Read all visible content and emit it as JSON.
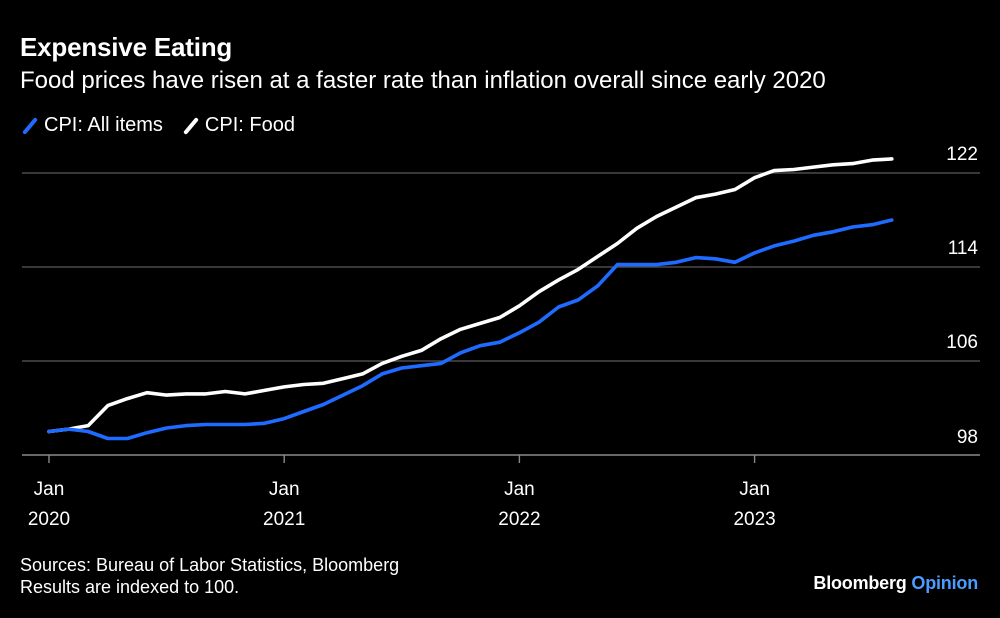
{
  "header": {
    "title": "Expensive Eating",
    "subtitle": "Food prices have risen at a faster rate than inflation overall since early 2020"
  },
  "legend": {
    "items": [
      {
        "label": "CPI: All items",
        "color": "#1f6bff"
      },
      {
        "label": "CPI: Food",
        "color": "#ffffff"
      }
    ]
  },
  "footer": {
    "sources": "Sources: Bureau of Labor Statistics, Bloomberg",
    "note": "Results are indexed to 100."
  },
  "brand": {
    "name": "Bloomberg",
    "section": "Opinion"
  },
  "chart_data": {
    "type": "line",
    "title": "Expensive Eating",
    "subtitle": "Food prices have risen at a faster rate than inflation overall since early 2020",
    "xlabel": "",
    "ylabel": "",
    "ylim": [
      98,
      124
    ],
    "yticks": [
      98,
      106,
      114,
      122
    ],
    "ytick_labels": [
      "98",
      "106",
      "114",
      "122"
    ],
    "xtick_labels": [
      {
        "month": "Jan",
        "year": "2020",
        "index": 0
      },
      {
        "month": "Jan",
        "year": "2021",
        "index": 12
      },
      {
        "month": "Jan",
        "year": "2022",
        "index": 24
      },
      {
        "month": "Jan",
        "year": "2023",
        "index": 36
      }
    ],
    "grid": true,
    "legend_position": "top-left",
    "x": [
      "2020-01",
      "2020-02",
      "2020-03",
      "2020-04",
      "2020-05",
      "2020-06",
      "2020-07",
      "2020-08",
      "2020-09",
      "2020-10",
      "2020-11",
      "2020-12",
      "2021-01",
      "2021-02",
      "2021-03",
      "2021-04",
      "2021-05",
      "2021-06",
      "2021-07",
      "2021-08",
      "2021-09",
      "2021-10",
      "2021-11",
      "2021-12",
      "2022-01",
      "2022-02",
      "2022-03",
      "2022-04",
      "2022-05",
      "2022-06",
      "2022-07",
      "2022-08",
      "2022-09",
      "2022-10",
      "2022-11",
      "2022-12",
      "2023-01",
      "2023-02",
      "2023-03",
      "2023-04",
      "2023-05",
      "2023-06",
      "2023-07",
      "2023-08"
    ],
    "series": [
      {
        "name": "CPI: All items",
        "color": "#1f6bff",
        "values": [
          100.0,
          100.2,
          100.0,
          99.4,
          99.4,
          99.9,
          100.3,
          100.5,
          100.6,
          100.6,
          100.6,
          100.7,
          101.1,
          101.7,
          102.3,
          103.1,
          103.9,
          104.9,
          105.4,
          105.6,
          105.8,
          106.7,
          107.3,
          107.6,
          108.4,
          109.3,
          110.6,
          111.2,
          112.4,
          114.2,
          114.2,
          114.2,
          114.4,
          114.8,
          114.7,
          114.4,
          115.2,
          115.8,
          116.2,
          116.7,
          117.0,
          117.4,
          117.6,
          118.0
        ]
      },
      {
        "name": "CPI: Food",
        "color": "#ffffff",
        "values": [
          100.0,
          100.2,
          100.5,
          102.2,
          102.8,
          103.3,
          103.1,
          103.2,
          103.2,
          103.4,
          103.2,
          103.5,
          103.8,
          104.0,
          104.1,
          104.5,
          104.9,
          105.8,
          106.4,
          106.9,
          107.9,
          108.7,
          109.2,
          109.7,
          110.7,
          111.9,
          112.9,
          113.8,
          114.9,
          116.0,
          117.3,
          118.3,
          119.1,
          119.9,
          120.2,
          120.6,
          121.6,
          122.2,
          122.3,
          122.5,
          122.7,
          122.8,
          123.1,
          123.2
        ]
      }
    ]
  }
}
